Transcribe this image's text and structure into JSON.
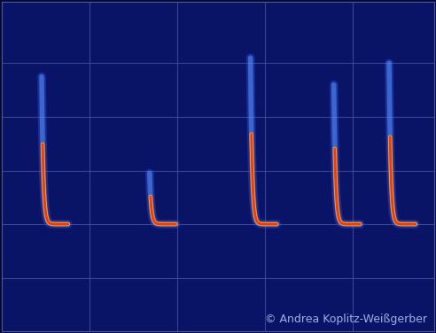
{
  "chart_data": {
    "type": "spectrogram",
    "annotations": [
      "© Andrea Koplitz-Weißgerber"
    ],
    "calls": [
      {
        "time": 45,
        "start_freq": 95,
        "end_freq": 40,
        "duration": 30
      },
      {
        "time": 168,
        "start_freq": 59,
        "end_freq": 40,
        "duration": 30
      },
      {
        "time": 283,
        "start_freq": 102,
        "end_freq": 40,
        "duration": 30
      },
      {
        "time": 378,
        "start_freq": 92,
        "end_freq": 40,
        "duration": 30
      },
      {
        "time": 441,
        "start_freq": 100,
        "end_freq": 40,
        "duration": 30
      }
    ],
    "color": "#ff3300",
    "xlim": [
      0,
      492
    ],
    "xticks": [
      100,
      200,
      300,
      400
    ],
    "ylim": [
      0,
      123
    ],
    "yticks": [
      20,
      40,
      60,
      80,
      100
    ],
    "grid": true,
    "tick_labels": false
  }
}
